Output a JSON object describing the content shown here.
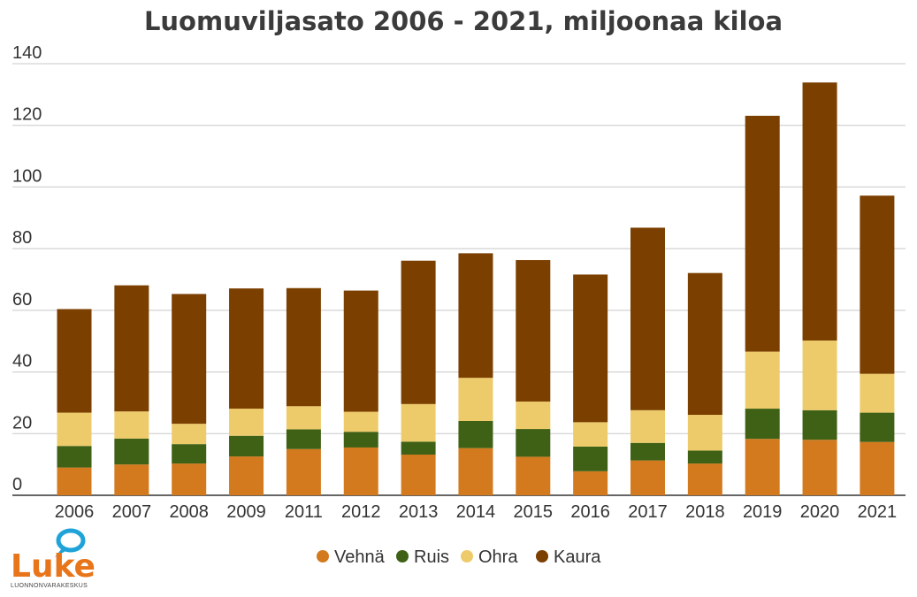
{
  "chart_data": {
    "type": "bar",
    "stacked": true,
    "title": "Luomuviljasato 2006 - 2021, miljoonaa kiloa",
    "categories": [
      "2006",
      "2007",
      "2008",
      "2009",
      "2011",
      "2012",
      "2013",
      "2014",
      "2015",
      "2016",
      "2017",
      "2018",
      "2019",
      "2020",
      "2021"
    ],
    "y_ticks": [
      "0",
      "20",
      "40",
      "60",
      "80",
      "100",
      "120",
      "140"
    ],
    "ylim": [
      0,
      140
    ],
    "grid": true,
    "legend_position": "bottom",
    "series": [
      {
        "name": "Vehnä",
        "color": "#d47a1e",
        "values": [
          9,
          10,
          10.3,
          12.6,
          15,
          15.5,
          13.2,
          15.3,
          12.5,
          7.8,
          11.3,
          10.3,
          18.3,
          18,
          17.3
        ]
      },
      {
        "name": "Ruis",
        "color": "#3f6115",
        "values": [
          7,
          8.4,
          6.3,
          6.7,
          6.4,
          5.1,
          4.2,
          8.8,
          9,
          8,
          5.7,
          4.2,
          9.8,
          9.6,
          9.5
        ]
      },
      {
        "name": "Ohra",
        "color": "#eecb6a",
        "values": [
          10.8,
          8.8,
          6.6,
          8.8,
          7.5,
          6.5,
          12.2,
          14,
          8.9,
          7.9,
          10.6,
          11.6,
          18.5,
          22.6,
          12.6
        ]
      },
      {
        "name": "Kaura",
        "color": "#7b3f00",
        "values": [
          33.6,
          40.9,
          42.1,
          39,
          38.3,
          39.3,
          46.5,
          40.4,
          45.9,
          47.9,
          59.2,
          46,
          76.5,
          83.7,
          57.8
        ]
      }
    ]
  },
  "logo": {
    "wordmark": "Luke",
    "subtitle": "LUONNONVARAKESKUS",
    "color": "#e8751a",
    "leaf_color": "#1fa3d8",
    "icon": "leaf-bubble-icon"
  }
}
